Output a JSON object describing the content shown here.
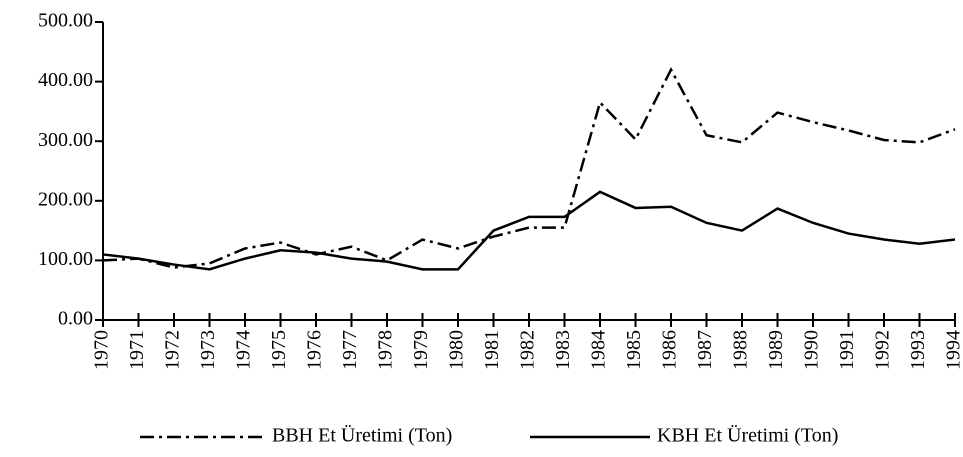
{
  "chart_data": {
    "type": "line",
    "categories": [
      "1970",
      "1971",
      "1972",
      "1973",
      "1974",
      "1975",
      "1976",
      "1977",
      "1978",
      "1979",
      "1980",
      "1981",
      "1982",
      "1983",
      "1984",
      "1985",
      "1986",
      "1987",
      "1988",
      "1989",
      "1990",
      "1991",
      "1992",
      "1993",
      "1994"
    ],
    "series": [
      {
        "name": "BBH Et Üretimi (Ton)",
        "color": "#000000",
        "line_style": "dashdot",
        "values": [
          100,
          103,
          88,
          95,
          120,
          130,
          110,
          123,
          100,
          135,
          120,
          140,
          155,
          155,
          365,
          303,
          420,
          310,
          298,
          348,
          332,
          318,
          302,
          298,
          320
        ]
      },
      {
        "name": "KBH Et Üretimi (Ton)",
        "color": "#000000",
        "line_style": "solid",
        "values": [
          110,
          103,
          93,
          85,
          103,
          117,
          113,
          103,
          98,
          85,
          85,
          150,
          173,
          173,
          215,
          188,
          190,
          163,
          150,
          187,
          163,
          145,
          135,
          128,
          135
        ]
      }
    ],
    "ylim": [
      0,
      500
    ],
    "yticks": [
      {
        "value": 0,
        "label": "0.00"
      },
      {
        "value": 100,
        "label": "100.00"
      },
      {
        "value": 200,
        "label": "200.00"
      },
      {
        "value": 300,
        "label": "300.00"
      },
      {
        "value": 400,
        "label": "400.00"
      },
      {
        "value": 500,
        "label": "500.00"
      }
    ],
    "grid": false,
    "legend": "bottom"
  }
}
